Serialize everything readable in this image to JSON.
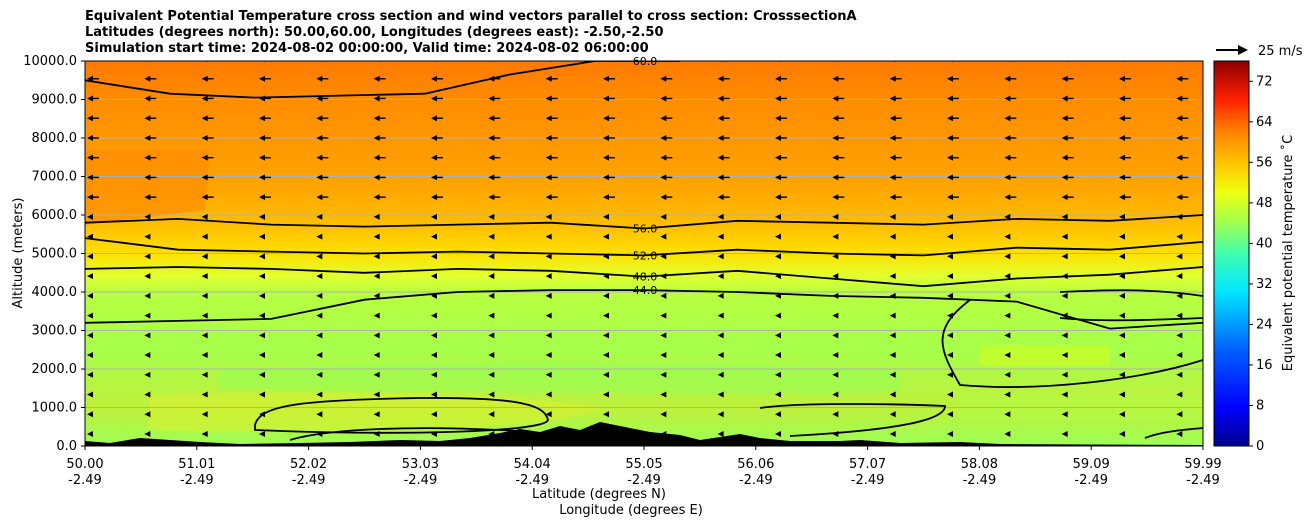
{
  "chart_data": {
    "type": "heatmap",
    "title_lines": [
      "Equivalent Potential Temperature cross section and wind vectors parallel to cross section: CrosssectionA",
      "Latitudes (degrees north): 50.00,60.00, Longitudes (degrees east): -2.50,-2.50",
      "Simulation start time: 2024-08-02 00:00:00, Valid time: 2024-08-02 06:00:00"
    ],
    "ylabel": "Altitude (meters)",
    "xlabel_1": "Latitude (degrees N)",
    "xlabel_2": "Longitude (degrees E)",
    "ylim": [
      0,
      10000
    ],
    "y_ticks": [
      "0.0",
      "1000.0",
      "2000.0",
      "3000.0",
      "4000.0",
      "5000.0",
      "6000.0",
      "7000.0",
      "8000.0",
      "9000.0",
      "10000.0"
    ],
    "x_ticks": [
      {
        "lat": "50.00",
        "lon": "-2.49"
      },
      {
        "lat": "51.01",
        "lon": "-2.49"
      },
      {
        "lat": "52.02",
        "lon": "-2.49"
      },
      {
        "lat": "53.03",
        "lon": "-2.49"
      },
      {
        "lat": "54.04",
        "lon": "-2.49"
      },
      {
        "lat": "55.05",
        "lon": "-2.49"
      },
      {
        "lat": "56.06",
        "lon": "-2.49"
      },
      {
        "lat": "57.07",
        "lon": "-2.49"
      },
      {
        "lat": "58.08",
        "lon": "-2.49"
      },
      {
        "lat": "59.09",
        "lon": "-2.49"
      },
      {
        "lat": "59.99",
        "lon": "-2.49"
      }
    ],
    "grid": "horizontal",
    "colorbar": {
      "label": "Equivalent potential temperature ˚C",
      "range": [
        0,
        76
      ],
      "ticks": [
        "0",
        "8",
        "16",
        "24",
        "32",
        "40",
        "48",
        "56",
        "64",
        "72"
      ]
    },
    "quiver_key": "25 m/s",
    "contours": [
      {
        "level": 60,
        "label": "60.0",
        "alt_m": [
          9500,
          9150,
          9050,
          9100,
          9150,
          9650,
          10000,
          10000
        ]
      },
      {
        "level": 56,
        "label": "56.0",
        "alt_m": [
          5800,
          5900,
          5750,
          5700,
          5750,
          5800,
          5650,
          5850,
          5800,
          5750,
          5900,
          5850,
          6000
        ]
      },
      {
        "level": 52,
        "label": "52.0",
        "alt_m": [
          5400,
          5100,
          5050,
          5000,
          5050,
          5000,
          4950,
          5100,
          5000,
          4950,
          5150,
          5100,
          5300
        ]
      },
      {
        "level": 48,
        "label": "48.0",
        "alt_m": [
          4600,
          4650,
          4600,
          4500,
          4600,
          4550,
          4400,
          4550,
          4350,
          4150,
          4350,
          4450,
          4650
        ]
      },
      {
        "level": 44,
        "label": "44.0",
        "alt_m": [
          3200,
          3250,
          3300,
          3800,
          4000,
          4050,
          4050,
          4000,
          3900,
          3850,
          3750,
          3050,
          3200
        ]
      }
    ]
  }
}
